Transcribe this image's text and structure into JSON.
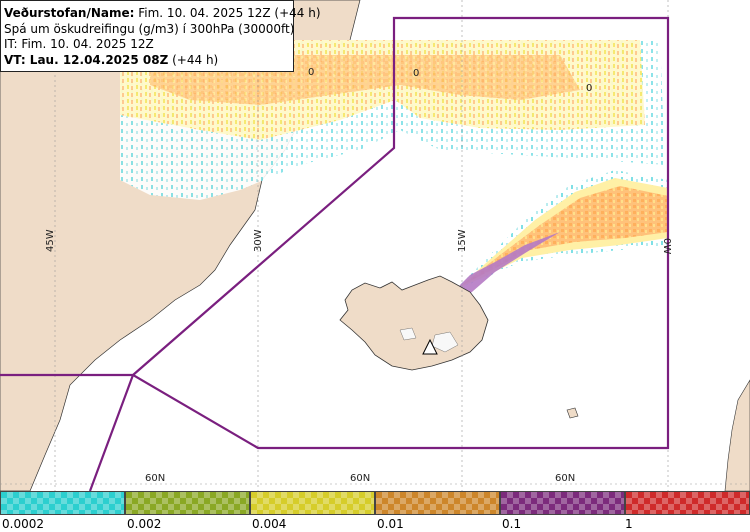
{
  "header": {
    "line1_bold": "Veðurstofan/Name:",
    "line1_rest": " Fim. 10. 04. 2025 12Z (+44 h)",
    "line2": "Spá um öskudreifingu (g/m3) í 300hPa (30000ft)",
    "line3": "IT: Fim. 10. 04. 2025 12Z",
    "line4_bold": "VT: Lau. 12.04.2025 08Z",
    "line4_rest": " (+44 h)"
  },
  "map": {
    "longitude_labels": [
      "45W",
      "30W",
      "15W",
      "0W"
    ],
    "latitude_labels": [
      "60N",
      "60N",
      "60N"
    ],
    "contour_labels": [
      "0",
      "0",
      "0"
    ],
    "volcano_marker": "triangle-marker"
  },
  "legend": {
    "colors": [
      "#2ccfcf",
      "#8aa824",
      "#d6cd2a",
      "#cd862a",
      "#7c2b7c",
      "#cf2a2a"
    ],
    "labels": [
      "0.0002",
      "0.002",
      "0.004",
      "0.01",
      "0.1",
      "1"
    ]
  }
}
